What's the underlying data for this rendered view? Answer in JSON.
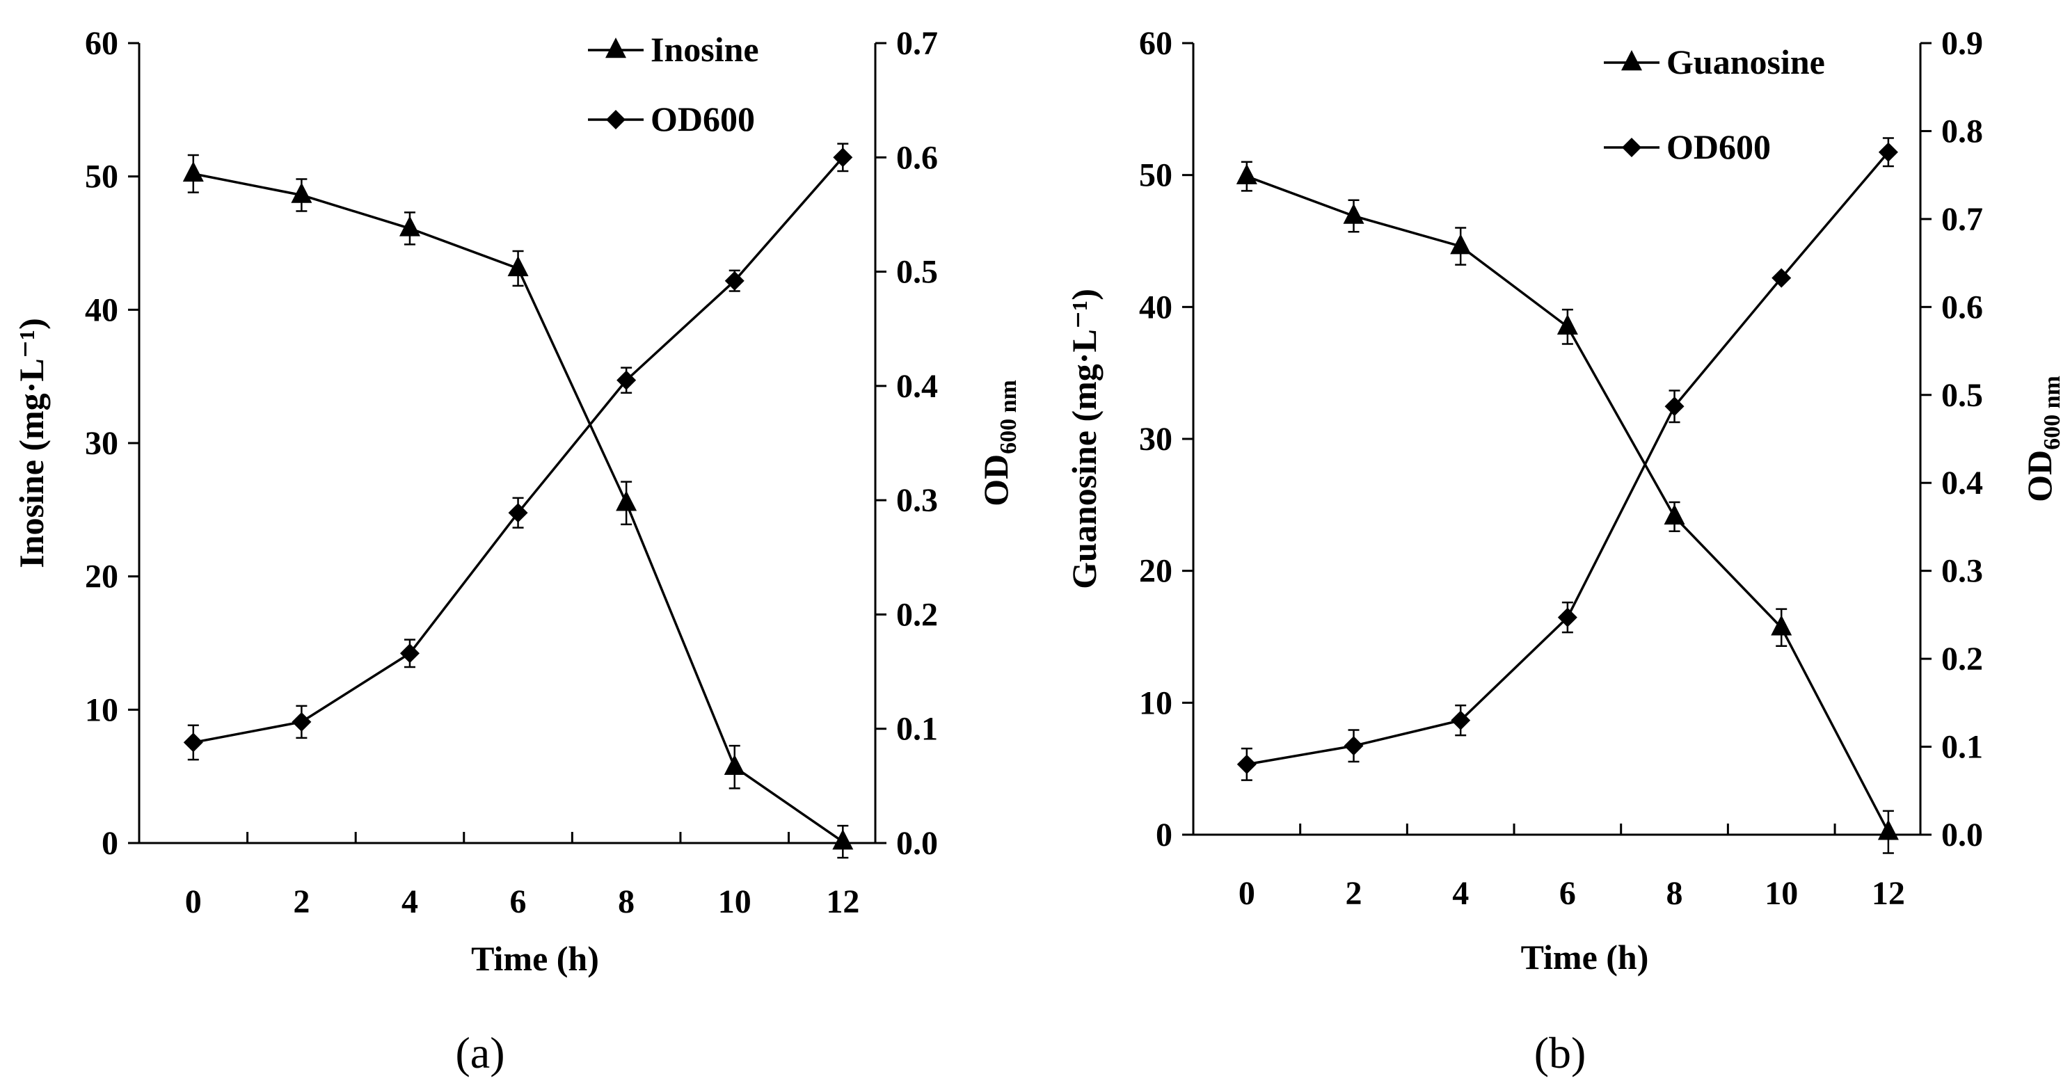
{
  "chart_data": [
    {
      "type": "line",
      "panel_label": "(a)",
      "xlabel": "Time (h)",
      "ylabel": "Inosine (mg·L⁻¹)",
      "y2label_main": "OD",
      "y2label_sub": "600 nm",
      "x_ticks": [
        "0",
        "2",
        "4",
        "6",
        "8",
        "10",
        "12"
      ],
      "y_ticks": [
        "0",
        "10",
        "20",
        "30",
        "40",
        "50",
        "60"
      ],
      "y2_ticks": [
        "0.0",
        "0.1",
        "0.2",
        "0.3",
        "0.4",
        "0.5",
        "0.6",
        "0.7"
      ],
      "xlim": [
        -1,
        12.6
      ],
      "ylim": [
        0,
        60
      ],
      "y2lim": [
        0,
        0.7
      ],
      "legend_position": "top-right",
      "series": [
        {
          "name": "Inosine",
          "marker": "triangle",
          "axis": "left",
          "x": [
            0,
            2,
            4,
            6,
            8,
            10,
            12
          ],
          "values": [
            50.2,
            48.6,
            46.1,
            43.1,
            25.5,
            5.7,
            0.1
          ],
          "errors": [
            1.4,
            1.2,
            1.2,
            1.3,
            1.6,
            1.6,
            1.2
          ]
        },
        {
          "name": "OD600",
          "marker": "diamond",
          "axis": "right",
          "x": [
            0,
            2,
            4,
            6,
            8,
            10,
            12
          ],
          "values": [
            0.088,
            0.106,
            0.166,
            0.289,
            0.405,
            0.492,
            0.6
          ],
          "errors": [
            0.015,
            0.014,
            0.012,
            0.013,
            0.011,
            0.009,
            0.012
          ]
        }
      ]
    },
    {
      "type": "line",
      "panel_label": "(b)",
      "xlabel": "Time (h)",
      "ylabel": "Guanosine (mg·L⁻¹)",
      "y2label_main": "OD",
      "y2label_sub": "600 nm",
      "x_ticks": [
        "0",
        "2",
        "4",
        "6",
        "8",
        "10",
        "12"
      ],
      "y_ticks": [
        "0",
        "10",
        "20",
        "30",
        "40",
        "50",
        "60"
      ],
      "y2_ticks": [
        "0.0",
        "0.1",
        "0.2",
        "0.3",
        "0.4",
        "0.5",
        "0.6",
        "0.7",
        "0.8",
        "0.9"
      ],
      "xlim": [
        -1,
        12.6
      ],
      "ylim": [
        0,
        60
      ],
      "y2lim": [
        0,
        0.9
      ],
      "legend_position": "top-right",
      "series": [
        {
          "name": "Guanosine",
          "marker": "triangle",
          "axis": "left",
          "x": [
            0,
            2,
            4,
            6,
            8,
            10,
            12
          ],
          "values": [
            49.9,
            46.9,
            44.6,
            38.5,
            24.1,
            15.7,
            0.2
          ],
          "errors": [
            1.1,
            1.2,
            1.4,
            1.3,
            1.1,
            1.4,
            1.6
          ]
        },
        {
          "name": "OD600",
          "marker": "diamond",
          "axis": "right",
          "x": [
            0,
            2,
            4,
            6,
            8,
            10,
            12
          ],
          "values": [
            0.08,
            0.101,
            0.13,
            0.247,
            0.487,
            0.633,
            0.776
          ],
          "errors": [
            0.018,
            0.018,
            0.017,
            0.017,
            0.018,
            0.0,
            0.016
          ]
        }
      ]
    }
  ]
}
